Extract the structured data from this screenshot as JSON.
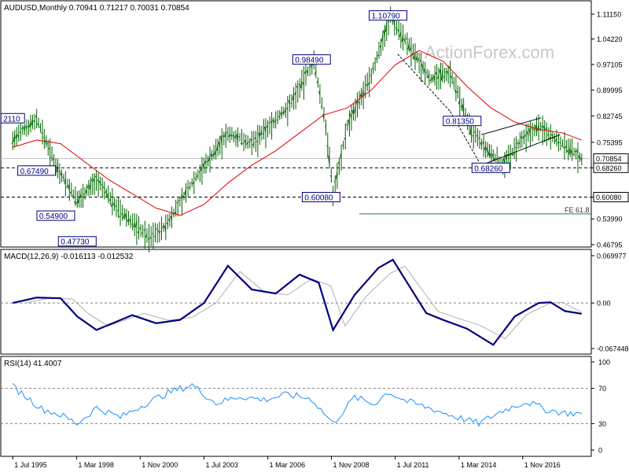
{
  "colors": {
    "price": "#006400",
    "ma": "#e00000",
    "macd": "#000080",
    "signal": "#b0b0b0",
    "rsi": "#1e90ff",
    "label_border": "#000080",
    "current_box": "#ffffff",
    "grid_dash": "#808080"
  },
  "main": {
    "header": "AUDUSD,Monthly  0.70941 0.71217 0.70031 0.70854",
    "watermark": "ActionForex.com",
    "y_ticks": [
      "1.11150",
      "1.04220",
      "0.97105",
      "0.89995",
      "0.82745",
      "0.75395",
      "0.68260",
      "0.60080",
      "0.53990",
      "0.46795"
    ],
    "y_tick_values": [
      1.1115,
      1.0422,
      0.97105,
      0.89995,
      0.82745,
      0.75395,
      0.6826,
      0.6008,
      0.5399,
      0.46795
    ],
    "current_price": "0.70854",
    "support_label": "0.68260",
    "lower_label": "0.60080",
    "fe_label": "FE 61.8",
    "annotations": [
      {
        "text": "1.10790",
        "x_year": 2011.2,
        "y": 1.1079
      },
      {
        "text": "0.98490",
        "x_year": 2008.0,
        "y": 0.9849
      },
      {
        "text": "0.81350",
        "x_year": 2014.3,
        "y": 0.8135
      },
      {
        "text": "0.68260",
        "x_year": 2015.5,
        "y": 0.6826
      },
      {
        "text": "0.60080",
        "x_year": 2008.4,
        "y": 0.6008
      },
      {
        "text": "0.67490",
        "x_year": 1996.5,
        "y": 0.6749
      },
      {
        "text": "0.54900",
        "x_year": 1997.3,
        "y": 0.549
      },
      {
        "text": "0.47730",
        "x_year": 1998.2,
        "y": 0.4773
      },
      {
        "text": "2110",
        "x_year": 1995.5,
        "y": 0.821
      }
    ]
  },
  "macd": {
    "header": "MACD(12,26,9) -0.016113 -0.012532",
    "y_ticks": [
      "0.069977",
      "0.00",
      "-0.067448"
    ]
  },
  "rsi": {
    "header": "RSI(14) 41.4007",
    "y_ticks": [
      "100",
      "70",
      "30",
      "0"
    ]
  },
  "x_axis": {
    "labels": [
      "1 Jul 1995",
      "1 Mar 1998",
      "1 Nov 2000",
      "1 Jul 2003",
      "1 Mar 2006",
      "1 Nov 2008",
      "1 Jul 2011",
      "1 Mar 2014",
      "1 Nov 2016"
    ],
    "positions_year": [
      1995.5,
      1998.17,
      2000.83,
      2003.5,
      2006.17,
      2008.83,
      2011.5,
      2014.17,
      2016.83
    ]
  },
  "chart_data": {
    "type": "line",
    "title": "AUDUSD,Monthly",
    "ohlc_last": {
      "open": 0.70941,
      "high": 0.71217,
      "low": 0.70031,
      "close": 0.70854
    },
    "series": [
      {
        "name": "AUDUSD",
        "x": [
          1995.5,
          1996.5,
          1997.3,
          1998.2,
          1999.0,
          2000.0,
          2001.2,
          2001.9,
          2003.0,
          2004.5,
          2005.5,
          2007.0,
          2008.1,
          2008.6,
          2008.9,
          2009.5,
          2010.5,
          2011.3,
          2012.0,
          2013.0,
          2013.8,
          2014.6,
          2015.2,
          2016.0,
          2016.8,
          2017.5,
          2018.5,
          2019.3
        ],
        "y": [
          0.76,
          0.82,
          0.69,
          0.59,
          0.65,
          0.56,
          0.49,
          0.52,
          0.64,
          0.78,
          0.75,
          0.85,
          0.98,
          0.8,
          0.61,
          0.8,
          0.94,
          1.108,
          1.03,
          0.93,
          0.95,
          0.8,
          0.74,
          0.69,
          0.76,
          0.8,
          0.75,
          0.7085
        ]
      },
      {
        "name": "MA",
        "x": [
          1995.5,
          1996.5,
          1997.5,
          1998.5,
          1999.5,
          2000.5,
          2001.5,
          2002.5,
          2003.5,
          2004.5,
          2005.5,
          2006.5,
          2007.5,
          2008.5,
          2009.5,
          2010.5,
          2011.5,
          2012.5,
          2013.5,
          2014.5,
          2015.5,
          2016.5,
          2017.5,
          2018.5,
          2019.3
        ],
        "y": [
          0.74,
          0.76,
          0.75,
          0.7,
          0.65,
          0.61,
          0.57,
          0.55,
          0.58,
          0.64,
          0.69,
          0.73,
          0.78,
          0.83,
          0.85,
          0.9,
          0.97,
          1.01,
          0.98,
          0.91,
          0.85,
          0.81,
          0.79,
          0.78,
          0.76
        ]
      },
      {
        "name": "MACD",
        "x": [
          1995.5,
          1996.5,
          1997.5,
          1998.2,
          1999.0,
          2000.5,
          2001.5,
          2002.5,
          2003.5,
          2004.5,
          2005.5,
          2006.5,
          2007.5,
          2008.3,
          2008.9,
          2009.8,
          2010.8,
          2011.4,
          2012.0,
          2012.8,
          2013.5,
          2014.5,
          2015.6,
          2016.5,
          2017.5,
          2018.0,
          2018.6,
          2019.3
        ],
        "y": [
          0.0,
          0.008,
          0.007,
          -0.02,
          -0.04,
          -0.018,
          -0.03,
          -0.025,
          0.0,
          0.055,
          0.02,
          0.014,
          0.042,
          0.03,
          -0.04,
          0.012,
          0.052,
          0.064,
          0.03,
          -0.015,
          -0.025,
          -0.038,
          -0.062,
          -0.02,
          0.0,
          0.001,
          -0.012,
          -0.016
        ]
      },
      {
        "name": "RSI",
        "x": [
          1995.5,
          1996.0,
          1996.7,
          1997.5,
          1998.2,
          1999.0,
          2000.0,
          2001.0,
          2002.0,
          2003.0,
          2004.0,
          2005.0,
          2006.0,
          2007.0,
          2008.0,
          2008.9,
          2009.8,
          2010.6,
          2011.2,
          2012.0,
          2013.0,
          2014.0,
          2015.0,
          2016.0,
          2017.0,
          2017.8,
          2018.6,
          2019.3
        ],
        "y": [
          72,
          62,
          47,
          40,
          30,
          48,
          37,
          52,
          65,
          74,
          53,
          61,
          57,
          63,
          58,
          30,
          60,
          52,
          66,
          55,
          47,
          38,
          30,
          45,
          55,
          46,
          42,
          41.4
        ]
      }
    ],
    "xlabel": "",
    "ylabel": ""
  }
}
